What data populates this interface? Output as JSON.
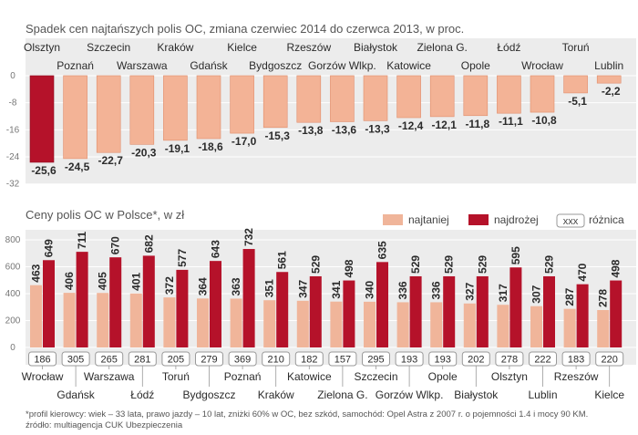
{
  "colors": {
    "top_bar": "#f3b396",
    "top_bar_dark": "#e08d6b",
    "top_bar_first": "#b5122a",
    "light_bar": "#f0b59a",
    "dark_bar": "#b5122a",
    "panel": "#e9e9e9",
    "text": "#2b2b2b",
    "axis": "#777777"
  },
  "legend": {
    "cheapest": "najtaniej",
    "most_expensive": "najdrożej",
    "diff_box": "xxx",
    "diff": "różnica"
  },
  "footnote": {
    "line1": "*profil kierowcy: wiek – 33 lata, prawo jazdy – 10 lat, zniżki 60% w OC, bez szkód, samochód: Opel Astra z 2007 r. o pojemności 1.4 i mocy 90 KM.",
    "line2": "źródło: multiagencja CUK Ubezpieczenia"
  },
  "chart_data": [
    {
      "type": "bar",
      "title": "Spadek cen najtańszych polis OC, zmiana czerwiec 2014 do czerwca 2013, w proc.",
      "categories": [
        "Olsztyn",
        "Poznań",
        "Szczecin",
        "Warszawa",
        "Kraków",
        "Gdańsk",
        "Kielce",
        "Bydgoszcz",
        "Rzeszów",
        "Gorzów Wlkp.",
        "Białystok",
        "Katowice",
        "Zielona G.",
        "Opole",
        "Łódź",
        "Wrocław",
        "Toruń",
        "Lublin"
      ],
      "values": [
        -25.6,
        -24.5,
        -22.7,
        -20.3,
        -19.1,
        -18.6,
        -17.0,
        -15.3,
        -13.8,
        -13.6,
        -13.3,
        -12.4,
        -12.1,
        -11.8,
        -11.1,
        -10.8,
        -5.1,
        -2.2
      ],
      "value_labels": [
        "-25,6",
        "-24,5",
        "-22,7",
        "-20,3",
        "-19,1",
        "-18,6",
        "-17,0",
        "-15,3",
        "-13,8",
        "-13,6",
        "-13,3",
        "-12,4",
        "-12,1",
        "-11,8",
        "-11,1",
        "-10,8",
        "-5,1",
        "-2,2"
      ],
      "yticks": [
        0,
        -8,
        -16,
        -24,
        -32
      ],
      "ylim": [
        -32,
        0
      ],
      "xlabel": "",
      "ylabel": ""
    },
    {
      "type": "bar",
      "title": "Ceny polis OC w Polsce*, w zł",
      "categories": [
        "Wrocław",
        "Gdańsk",
        "Warszawa",
        "Łódź",
        "Toruń",
        "Bydgoszcz",
        "Poznań",
        "Kraków",
        "Katowice",
        "Zielona G.",
        "Szczecin",
        "Gorzów Wlkp.",
        "Opole",
        "Białystok",
        "Olsztyn",
        "Lublin",
        "Rzeszów",
        "Kielce"
      ],
      "series": [
        {
          "name": "najtaniej",
          "values": [
            463,
            406,
            405,
            401,
            372,
            364,
            363,
            351,
            347,
            341,
            340,
            336,
            336,
            327,
            317,
            307,
            287,
            278
          ]
        },
        {
          "name": "najdrożej",
          "values": [
            649,
            711,
            670,
            682,
            577,
            643,
            732,
            561,
            529,
            498,
            635,
            529,
            529,
            529,
            595,
            529,
            470,
            498
          ]
        }
      ],
      "differences": [
        186,
        305,
        265,
        281,
        205,
        279,
        369,
        210,
        182,
        157,
        295,
        193,
        193,
        202,
        278,
        222,
        183,
        220
      ],
      "yticks": [
        0,
        200,
        400,
        600,
        800
      ],
      "ylim": [
        0,
        800
      ],
      "xlabel": "",
      "ylabel": ""
    }
  ]
}
